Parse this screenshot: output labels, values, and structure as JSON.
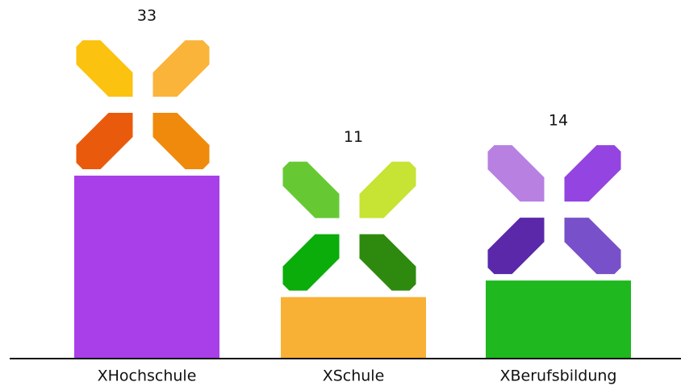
{
  "chart_data": {
    "type": "bar",
    "categories": [
      "XHochschule",
      "XSchule",
      "XBerufsbildung"
    ],
    "values": [
      33,
      11,
      14
    ],
    "colors": [
      "#a83fe9",
      "#f8b035",
      "#1fb81f"
    ]
  }
}
